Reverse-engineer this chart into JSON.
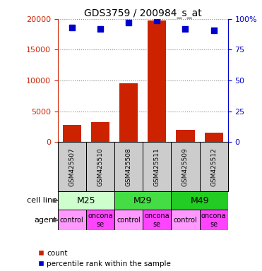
{
  "title": "GDS3759 / 200984_s_at",
  "samples": [
    "GSM425507",
    "GSM425510",
    "GSM425508",
    "GSM425511",
    "GSM425509",
    "GSM425512"
  ],
  "counts": [
    2800,
    3200,
    9500,
    19800,
    2000,
    1500
  ],
  "percentiles": [
    93,
    92,
    97,
    99,
    92,
    91
  ],
  "bar_color": "#cc2200",
  "scatter_color": "#0000cc",
  "left_ylim": [
    0,
    20000
  ],
  "right_ylim": [
    0,
    100
  ],
  "left_yticks": [
    0,
    5000,
    10000,
    15000,
    20000
  ],
  "right_yticks": [
    0,
    25,
    50,
    75,
    100
  ],
  "right_yticklabels": [
    "0",
    "25",
    "50",
    "75",
    "100%"
  ],
  "cell_line_groups": [
    {
      "label": "M25",
      "color": "#ccffcc",
      "start": 0,
      "end": 2
    },
    {
      "label": "M29",
      "color": "#44dd44",
      "start": 2,
      "end": 4
    },
    {
      "label": "M49",
      "color": "#22cc22",
      "start": 4,
      "end": 6
    }
  ],
  "agents": [
    "control",
    "onconase",
    "control",
    "onconase",
    "control",
    "onconase"
  ],
  "agent_control_color": "#ff99ff",
  "agent_onconase_color": "#ff44ff",
  "sample_bg_color": "#cccccc",
  "grid_color": "#888888",
  "left_axis_color": "#cc2200",
  "right_axis_color": "#0000cc",
  "figsize": [
    3.71,
    3.84
  ],
  "dpi": 100
}
